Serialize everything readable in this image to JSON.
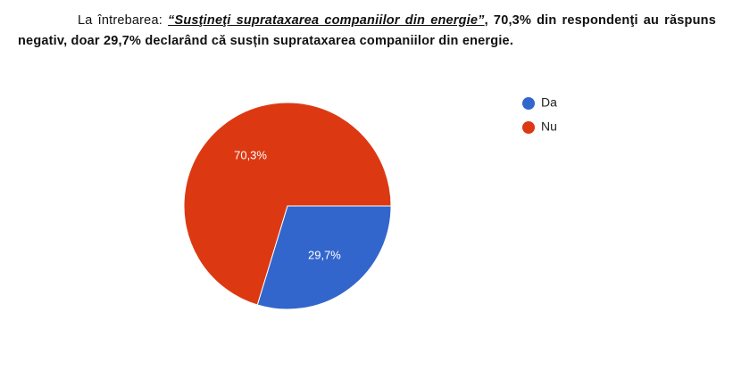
{
  "paragraph": {
    "intro": "La întrebarea: ",
    "quote": "“Susţineţi suprataxarea companiilor din energie”",
    "rest": ",  70,3% din respondenţi au răspuns negativ, doar 29,7% declarând că susțin suprataxarea companiilor din energie."
  },
  "chart_data": {
    "type": "pie",
    "categories": [
      "Da",
      "Nu"
    ],
    "values": [
      29.7,
      70.3
    ],
    "value_labels": [
      "29,7%",
      "70,3%"
    ],
    "colors": [
      "#3366cc",
      "#dc3912"
    ],
    "legend": "right"
  }
}
